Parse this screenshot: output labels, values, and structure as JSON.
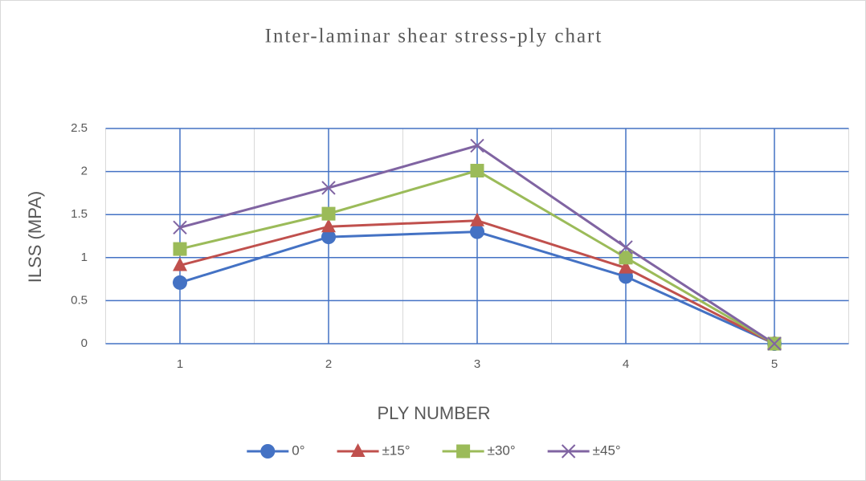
{
  "chart_data": {
    "type": "line",
    "title": "Inter-laminar shear stress-ply chart",
    "x_label": "PLY NUMBER",
    "y_label": "ILSS (MPA)",
    "categories": [
      "1",
      "2",
      "3",
      "4",
      "5"
    ],
    "series": [
      {
        "name": "0°",
        "color": "#4472c4",
        "marker": "circle",
        "values": [
          0.71,
          1.24,
          1.3,
          0.78,
          0
        ]
      },
      {
        "name": "±15°",
        "color": "#c0504d",
        "marker": "triangle",
        "values": [
          0.91,
          1.36,
          1.43,
          0.88,
          0
        ]
      },
      {
        "name": "±30°",
        "color": "#9bbb59",
        "marker": "square",
        "values": [
          1.1,
          1.51,
          2.01,
          1.0,
          0
        ]
      },
      {
        "name": "±45°",
        "color": "#8064a2",
        "marker": "x",
        "values": [
          1.35,
          1.81,
          2.3,
          1.12,
          0
        ]
      }
    ],
    "ylim": [
      0,
      2.5
    ],
    "yticks": [
      0,
      0.5,
      1,
      1.5,
      2,
      2.5
    ],
    "grid": true,
    "legend": "bottom"
  }
}
